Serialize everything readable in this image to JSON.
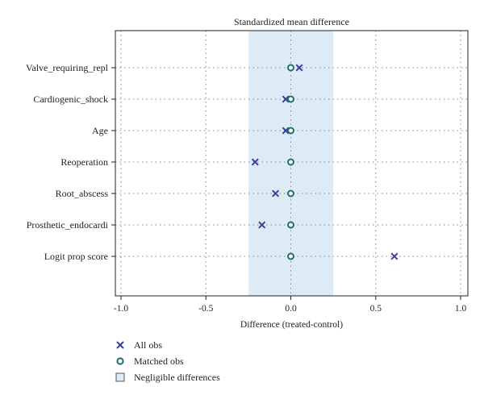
{
  "chart_data": {
    "type": "scatter",
    "title": "Standardized mean difference",
    "xlabel": "Difference (treated-control)",
    "ylabel": "",
    "xlim": [
      -1.05,
      1.05
    ],
    "xticks": [
      -1.0,
      -0.5,
      0.0,
      0.5,
      1.0
    ],
    "xtick_labels": [
      "-1.0",
      "-0.5",
      "0.0",
      "0.5",
      "1.0"
    ],
    "categories": [
      "Valve_requiring_repl",
      "Cardiogenic_shock",
      "Age",
      "Reoperation",
      "Root_abscess",
      "Prosthetic_endocardi",
      "Logit prop score"
    ],
    "series": [
      {
        "name": "All obs",
        "marker": "x",
        "color": "#3b3f9e",
        "values": [
          0.05,
          -0.03,
          -0.03,
          -0.21,
          -0.09,
          -0.17,
          0.61
        ]
      },
      {
        "name": "Matched obs",
        "marker": "circle",
        "color": "#1f6d6d",
        "values": [
          0.0,
          0.0,
          0.0,
          0.0,
          0.0,
          0.0,
          0.0
        ]
      }
    ],
    "negligible_band": {
      "label": "Negligible differences",
      "range": [
        -0.25,
        0.25
      ],
      "color": "#dcebf5"
    },
    "grid": true,
    "legend": "bottom-left"
  },
  "colors": {
    "band": "#dcebf5",
    "all_obs": "#3b3f9e",
    "matched_obs": "#1f6d6d"
  },
  "legend": {
    "items": [
      {
        "label": "All obs",
        "icon": "x-marker-icon"
      },
      {
        "label": "Matched obs",
        "icon": "circle-marker-icon"
      },
      {
        "label": "Negligible differences",
        "icon": "square-swatch-icon"
      }
    ]
  }
}
